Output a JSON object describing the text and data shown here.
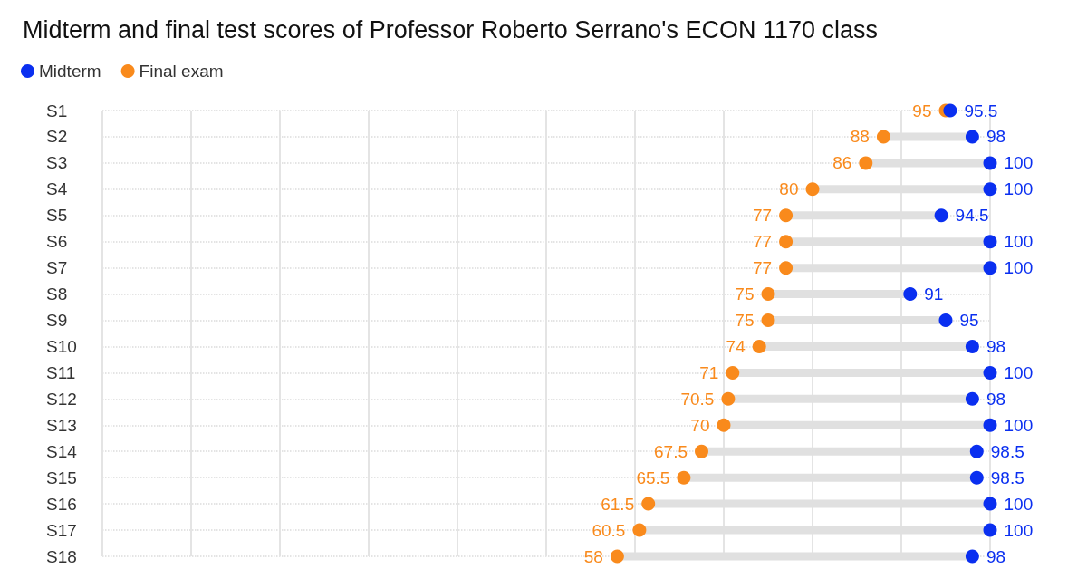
{
  "chart_data": {
    "type": "scatter",
    "title": "Midterm and final test scores of Professor Roberto Serrano's ECON 1170 class",
    "categories": [
      "S1",
      "S2",
      "S3",
      "S4",
      "S5",
      "S6",
      "S7",
      "S8",
      "S9",
      "S10",
      "S11",
      "S12",
      "S13",
      "S14",
      "S15",
      "S16",
      "S17",
      "S18"
    ],
    "series": [
      {
        "name": "Midterm",
        "color": "#0a2ff0",
        "values": [
          95.5,
          98,
          100,
          100,
          94.5,
          100,
          100,
          91,
          95,
          98,
          100,
          98,
          100,
          98.5,
          98.5,
          100,
          100,
          98
        ]
      },
      {
        "name": "Final exam",
        "color": "#f98a1c",
        "values": [
          95,
          88,
          86,
          80,
          77,
          77,
          77,
          75,
          75,
          74,
          71,
          70.5,
          70,
          67.5,
          65.5,
          61.5,
          60.5,
          58
        ]
      }
    ],
    "orientation": "horizontal",
    "xlim": [
      0,
      100
    ],
    "xticks": [
      {
        "value": 0,
        "label": null
      },
      {
        "value": 10,
        "label": null
      },
      {
        "value": 20,
        "label": null
      },
      {
        "value": 30,
        "label": null
      },
      {
        "value": 40,
        "label": null
      },
      {
        "value": 50,
        "label": null
      },
      {
        "value": 60,
        "label": null
      },
      {
        "value": 70,
        "label": null
      },
      {
        "value": 80,
        "label": null
      },
      {
        "value": 90,
        "label": null
      },
      {
        "value": 100,
        "label": null
      }
    ],
    "tick_labels": "y",
    "grid": true,
    "legend": "top left",
    "marker": "circle",
    "data_labels": true
  }
}
